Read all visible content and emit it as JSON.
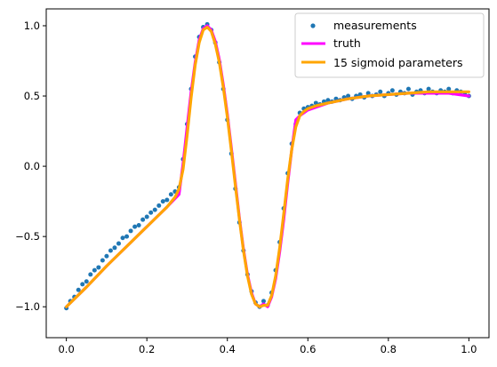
{
  "chart_data": {
    "type": "scatter",
    "title": "",
    "xlabel": "",
    "ylabel": "",
    "xlim": [
      -0.05,
      1.05
    ],
    "ylim": [
      -1.22,
      1.12
    ],
    "grid": false,
    "x_ticks": [
      0.0,
      0.2,
      0.4,
      0.6,
      0.8,
      1.0
    ],
    "x_tick_labels": [
      "0.0",
      "0.2",
      "0.4",
      "0.6",
      "0.8",
      "1.0"
    ],
    "y_ticks": [
      -1.0,
      -0.5,
      0.0,
      0.5,
      1.0
    ],
    "y_tick_labels": [
      "−1.0",
      "−0.5",
      "0.0",
      "0.5",
      "1.0"
    ],
    "legend_position": "top-right",
    "series": [
      {
        "name": "measurements",
        "kind": "scatter",
        "color": "#1f77b4",
        "x": [
          0.0,
          0.01,
          0.02,
          0.03,
          0.04,
          0.05,
          0.06,
          0.07,
          0.08,
          0.09,
          0.1,
          0.11,
          0.12,
          0.13,
          0.14,
          0.15,
          0.16,
          0.17,
          0.18,
          0.19,
          0.2,
          0.21,
          0.22,
          0.23,
          0.24,
          0.25,
          0.26,
          0.27,
          0.28,
          0.29,
          0.3,
          0.31,
          0.32,
          0.33,
          0.34,
          0.35,
          0.36,
          0.37,
          0.38,
          0.39,
          0.4,
          0.41,
          0.42,
          0.43,
          0.44,
          0.45,
          0.46,
          0.47,
          0.48,
          0.49,
          0.5,
          0.51,
          0.52,
          0.53,
          0.54,
          0.55,
          0.56,
          0.57,
          0.58,
          0.59,
          0.6,
          0.61,
          0.62,
          0.63,
          0.64,
          0.65,
          0.66,
          0.67,
          0.68,
          0.69,
          0.7,
          0.71,
          0.72,
          0.73,
          0.74,
          0.75,
          0.76,
          0.77,
          0.78,
          0.79,
          0.8,
          0.81,
          0.82,
          0.83,
          0.84,
          0.85,
          0.86,
          0.87,
          0.88,
          0.89,
          0.9,
          0.91,
          0.92,
          0.93,
          0.94,
          0.95,
          0.96,
          0.97,
          0.98,
          0.99,
          1.0
        ],
        "y": [
          -1.01,
          -0.96,
          -0.93,
          -0.88,
          -0.84,
          -0.82,
          -0.77,
          -0.74,
          -0.72,
          -0.67,
          -0.64,
          -0.6,
          -0.58,
          -0.55,
          -0.51,
          -0.5,
          -0.46,
          -0.43,
          -0.42,
          -0.38,
          -0.36,
          -0.33,
          -0.31,
          -0.28,
          -0.25,
          -0.24,
          -0.2,
          -0.18,
          -0.15,
          0.05,
          0.3,
          0.55,
          0.78,
          0.92,
          0.99,
          1.01,
          0.97,
          0.88,
          0.74,
          0.55,
          0.33,
          0.09,
          -0.16,
          -0.4,
          -0.6,
          -0.77,
          -0.89,
          -0.97,
          -1.0,
          -0.96,
          -0.99,
          -0.9,
          -0.74,
          -0.54,
          -0.3,
          -0.05,
          0.16,
          0.3,
          0.38,
          0.41,
          0.42,
          0.43,
          0.45,
          0.44,
          0.46,
          0.47,
          0.46,
          0.48,
          0.47,
          0.49,
          0.5,
          0.48,
          0.5,
          0.51,
          0.49,
          0.52,
          0.5,
          0.51,
          0.53,
          0.5,
          0.52,
          0.54,
          0.51,
          0.53,
          0.52,
          0.55,
          0.51,
          0.53,
          0.54,
          0.52,
          0.55,
          0.53,
          0.52,
          0.54,
          0.53,
          0.55,
          0.52,
          0.54,
          0.53,
          0.52,
          0.5
        ]
      },
      {
        "name": "truth",
        "kind": "line",
        "color": "#ff00ff",
        "x": [
          0.0,
          0.05,
          0.1,
          0.15,
          0.2,
          0.25,
          0.28,
          0.29,
          0.3,
          0.31,
          0.32,
          0.33,
          0.34,
          0.35,
          0.36,
          0.37,
          0.38,
          0.39,
          0.4,
          0.41,
          0.42,
          0.43,
          0.44,
          0.45,
          0.46,
          0.47,
          0.48,
          0.49,
          0.5,
          0.51,
          0.52,
          0.53,
          0.54,
          0.55,
          0.56,
          0.57,
          0.58,
          0.6,
          0.65,
          0.7,
          0.75,
          0.8,
          0.85,
          0.9,
          0.95,
          1.0
        ],
        "y": [
          -1.0,
          -0.86,
          -0.71,
          -0.57,
          -0.43,
          -0.29,
          -0.2,
          0.02,
          0.28,
          0.53,
          0.74,
          0.9,
          0.98,
          1.0,
          0.97,
          0.89,
          0.76,
          0.58,
          0.37,
          0.13,
          -0.12,
          -0.37,
          -0.59,
          -0.77,
          -0.9,
          -0.98,
          -1.0,
          -0.98,
          -1.0,
          -0.93,
          -0.8,
          -0.61,
          -0.38,
          -0.12,
          0.12,
          0.33,
          0.36,
          0.4,
          0.45,
          0.48,
          0.5,
          0.51,
          0.52,
          0.52,
          0.52,
          0.5
        ]
      },
      {
        "name": "15 sigmoid parameters",
        "kind": "line",
        "color": "#ffa500",
        "x": [
          0.0,
          0.05,
          0.1,
          0.15,
          0.2,
          0.25,
          0.27,
          0.28,
          0.29,
          0.3,
          0.31,
          0.32,
          0.33,
          0.34,
          0.35,
          0.36,
          0.37,
          0.38,
          0.39,
          0.4,
          0.41,
          0.42,
          0.43,
          0.44,
          0.45,
          0.46,
          0.47,
          0.48,
          0.49,
          0.5,
          0.51,
          0.52,
          0.53,
          0.54,
          0.55,
          0.56,
          0.57,
          0.58,
          0.59,
          0.6,
          0.62,
          0.65,
          0.7,
          0.75,
          0.8,
          0.85,
          0.9,
          0.95,
          1.0
        ],
        "y": [
          -1.0,
          -0.86,
          -0.71,
          -0.57,
          -0.43,
          -0.29,
          -0.22,
          -0.16,
          -0.02,
          0.22,
          0.49,
          0.72,
          0.88,
          0.97,
          0.99,
          0.96,
          0.87,
          0.74,
          0.56,
          0.35,
          0.11,
          -0.14,
          -0.38,
          -0.6,
          -0.78,
          -0.91,
          -0.98,
          -1.0,
          -0.99,
          -0.99,
          -0.92,
          -0.78,
          -0.58,
          -0.34,
          -0.09,
          0.12,
          0.28,
          0.36,
          0.39,
          0.41,
          0.43,
          0.45,
          0.48,
          0.5,
          0.51,
          0.52,
          0.53,
          0.53,
          0.53
        ]
      }
    ]
  }
}
